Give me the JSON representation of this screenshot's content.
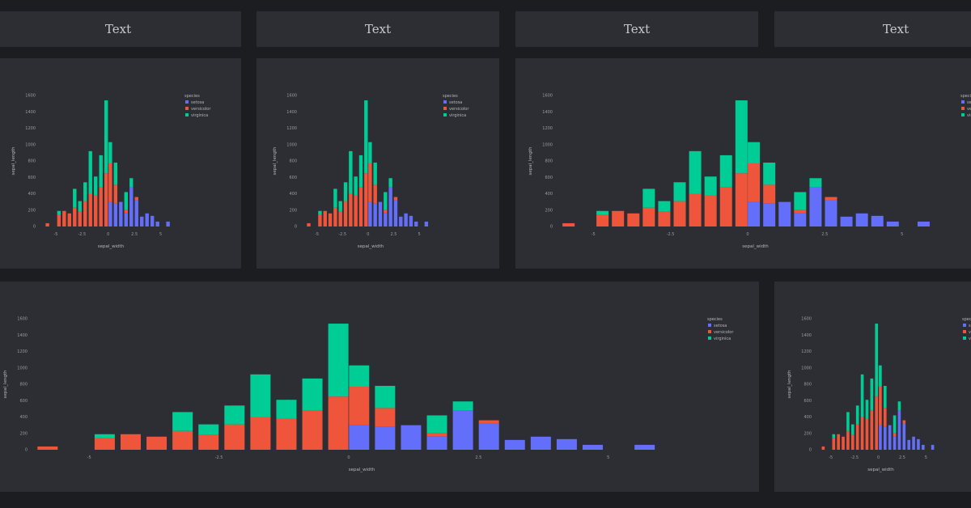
{
  "colors": {
    "setosa": "#636efa",
    "versicolor": "#ef553b",
    "virginica": "#00cc96",
    "background": "#1b1d21",
    "card": "#2c2e33",
    "text": "#c8c9cc"
  },
  "headers": [
    "Text",
    "Text",
    "Text",
    "Text"
  ],
  "chart_data": [
    {
      "type": "bar",
      "barmode": "stack",
      "xlabel": "sepal_width",
      "ylabel": "sepal_length",
      "legend_title": "species",
      "legend_position": "top-right",
      "ylim": [
        0,
        1600
      ],
      "yticks": [
        "0",
        "200",
        "400",
        "600",
        "800",
        "1000",
        "1200",
        "1400",
        "1600"
      ],
      "xlim": [
        -6,
        6.5
      ],
      "xtick_values": [
        -5,
        -2.5,
        0,
        2.5,
        5
      ],
      "xtick_labels": [
        "-5",
        "-2.5",
        "0",
        "2.5",
        "5"
      ],
      "x": [
        -5.8,
        -4.7,
        -4.2,
        -3.7,
        -3.2,
        -2.7,
        -2.2,
        -1.7,
        -1.2,
        -0.7,
        -0.2,
        0.2,
        0.7,
        1.2,
        1.7,
        2.2,
        2.7,
        3.2,
        3.7,
        4.2,
        4.7,
        5.7
      ],
      "series": [
        {
          "name": "setosa",
          "values": [
            0,
            0,
            0,
            0,
            0,
            0,
            0,
            0,
            0,
            0,
            0,
            300,
            280,
            300,
            160,
            480,
            320,
            120,
            160,
            130,
            60,
            60
          ]
        },
        {
          "name": "versicolor",
          "values": [
            40,
            140,
            190,
            160,
            230,
            180,
            310,
            400,
            380,
            480,
            650,
            470,
            230,
            0,
            40,
            0,
            40,
            0,
            0,
            0,
            0,
            0
          ]
        },
        {
          "name": "virginica",
          "values": [
            0,
            50,
            0,
            0,
            230,
            130,
            230,
            520,
            230,
            390,
            890,
            260,
            270,
            0,
            220,
            110,
            0,
            0,
            0,
            0,
            0,
            0
          ]
        }
      ]
    },
    {
      "type": "bar",
      "barmode": "stack",
      "xlabel": "sepal_width",
      "ylabel": "sepal_length",
      "legend_title": "species",
      "legend_position": "top-right",
      "ylim": [
        0,
        1600
      ],
      "yticks": [
        "0",
        "200",
        "400",
        "600",
        "800",
        "1000",
        "1200",
        "1400",
        "1600"
      ],
      "xlim": [
        -6,
        6.5
      ],
      "xtick_values": [
        -5,
        -2.5,
        0,
        2.5,
        5
      ],
      "xtick_labels": [
        "-5",
        "-2.5",
        "0",
        "2.5",
        "5"
      ],
      "x": [
        -5.8,
        -4.7,
        -4.2,
        -3.7,
        -3.2,
        -2.7,
        -2.2,
        -1.7,
        -1.2,
        -0.7,
        -0.2,
        0.2,
        0.7,
        1.2,
        1.7,
        2.2,
        2.7,
        3.2,
        3.7,
        4.2,
        4.7,
        5.7
      ],
      "series": [
        {
          "name": "setosa",
          "values": [
            0,
            0,
            0,
            0,
            0,
            0,
            0,
            0,
            0,
            0,
            0,
            300,
            280,
            300,
            160,
            480,
            320,
            120,
            160,
            130,
            60,
            60
          ]
        },
        {
          "name": "versicolor",
          "values": [
            40,
            140,
            190,
            160,
            230,
            180,
            310,
            400,
            380,
            480,
            650,
            470,
            230,
            0,
            40,
            0,
            40,
            0,
            0,
            0,
            0,
            0
          ]
        },
        {
          "name": "virginica",
          "values": [
            0,
            50,
            0,
            0,
            230,
            130,
            230,
            520,
            230,
            390,
            890,
            260,
            270,
            0,
            220,
            110,
            0,
            0,
            0,
            0,
            0,
            0
          ]
        }
      ]
    },
    {
      "type": "bar",
      "barmode": "stack",
      "xlabel": "sepal_width",
      "ylabel": "sepal_length",
      "legend_title": "species",
      "legend_position": "top-right",
      "ylim": [
        0,
        1600
      ],
      "yticks": [
        "0",
        "200",
        "400",
        "600",
        "800",
        "1000",
        "1200",
        "1400",
        "1600"
      ],
      "xlim": [
        -6,
        6.5
      ],
      "xtick_values": [
        -5,
        -2.5,
        0,
        2.5,
        5
      ],
      "xtick_labels": [
        "-5",
        "-2.5",
        "0",
        "2.5",
        "5"
      ],
      "x": [
        -5.8,
        -4.7,
        -4.2,
        -3.7,
        -3.2,
        -2.7,
        -2.2,
        -1.7,
        -1.2,
        -0.7,
        -0.2,
        0.2,
        0.7,
        1.2,
        1.7,
        2.2,
        2.7,
        3.2,
        3.7,
        4.2,
        4.7,
        5.7
      ],
      "series": [
        {
          "name": "setosa",
          "values": [
            0,
            0,
            0,
            0,
            0,
            0,
            0,
            0,
            0,
            0,
            0,
            300,
            280,
            300,
            160,
            480,
            320,
            120,
            160,
            130,
            60,
            60
          ]
        },
        {
          "name": "versicolor",
          "values": [
            40,
            140,
            190,
            160,
            230,
            180,
            310,
            400,
            380,
            480,
            650,
            470,
            230,
            0,
            40,
            0,
            40,
            0,
            0,
            0,
            0,
            0
          ]
        },
        {
          "name": "virginica",
          "values": [
            0,
            50,
            0,
            0,
            230,
            130,
            230,
            520,
            230,
            390,
            890,
            260,
            270,
            0,
            220,
            110,
            0,
            0,
            0,
            0,
            0,
            0
          ]
        }
      ]
    },
    {
      "type": "bar",
      "barmode": "stack",
      "xlabel": "sepal_width",
      "ylabel": "sepal_length",
      "legend_title": "species",
      "legend_position": "top-right",
      "ylim": [
        0,
        1600
      ],
      "yticks": [
        "0",
        "200",
        "400",
        "600",
        "800",
        "1000",
        "1200",
        "1400",
        "1600"
      ],
      "xlim": [
        -6,
        6.5
      ],
      "xtick_values": [
        -5,
        -2.5,
        0,
        2.5,
        5
      ],
      "xtick_labels": [
        "-5",
        "-2.5",
        "0",
        "2.5",
        "5"
      ],
      "x": [
        -5.8,
        -4.7,
        -4.2,
        -3.7,
        -3.2,
        -2.7,
        -2.2,
        -1.7,
        -1.2,
        -0.7,
        -0.2,
        0.2,
        0.7,
        1.2,
        1.7,
        2.2,
        2.7,
        3.2,
        3.7,
        4.2,
        4.7,
        5.7
      ],
      "series": [
        {
          "name": "setosa",
          "values": [
            0,
            0,
            0,
            0,
            0,
            0,
            0,
            0,
            0,
            0,
            0,
            300,
            280,
            300,
            160,
            480,
            320,
            120,
            160,
            130,
            60,
            60
          ]
        },
        {
          "name": "versicolor",
          "values": [
            40,
            140,
            190,
            160,
            230,
            180,
            310,
            400,
            380,
            480,
            650,
            470,
            230,
            0,
            40,
            0,
            40,
            0,
            0,
            0,
            0,
            0
          ]
        },
        {
          "name": "virginica",
          "values": [
            0,
            50,
            0,
            0,
            230,
            130,
            230,
            520,
            230,
            390,
            890,
            260,
            270,
            0,
            220,
            110,
            0,
            0,
            0,
            0,
            0,
            0
          ]
        }
      ]
    },
    {
      "type": "bar",
      "barmode": "stack",
      "xlabel": "sepal_width",
      "ylabel": "sepal_length",
      "legend_title": "species",
      "legend_position": "top-right",
      "ylim": [
        0,
        1600
      ],
      "yticks": [
        "0",
        "200",
        "400",
        "600",
        "800",
        "1000",
        "1200",
        "1400",
        "1600"
      ],
      "xlim": [
        -6,
        6.5
      ],
      "xtick_values": [
        -5,
        -2.5,
        0,
        2.5,
        5
      ],
      "xtick_labels": [
        "-5",
        "-2.5",
        "0",
        "2.5",
        "5"
      ],
      "x": [
        -5.8,
        -4.7,
        -4.2,
        -3.7,
        -3.2,
        -2.7,
        -2.2,
        -1.7,
        -1.2,
        -0.7,
        -0.2,
        0.2,
        0.7,
        1.2,
        1.7,
        2.2,
        2.7,
        3.2,
        3.7,
        4.2,
        4.7,
        5.7
      ],
      "series": [
        {
          "name": "setosa",
          "values": [
            0,
            0,
            0,
            0,
            0,
            0,
            0,
            0,
            0,
            0,
            0,
            300,
            280,
            300,
            160,
            480,
            320,
            120,
            160,
            130,
            60,
            60
          ]
        },
        {
          "name": "versicolor",
          "values": [
            40,
            140,
            190,
            160,
            230,
            180,
            310,
            400,
            380,
            480,
            650,
            470,
            230,
            0,
            40,
            0,
            40,
            0,
            0,
            0,
            0,
            0
          ]
        },
        {
          "name": "virginica",
          "values": [
            0,
            50,
            0,
            0,
            230,
            130,
            230,
            520,
            230,
            390,
            890,
            260,
            270,
            0,
            220,
            110,
            0,
            0,
            0,
            0,
            0,
            0
          ]
        }
      ]
    }
  ]
}
